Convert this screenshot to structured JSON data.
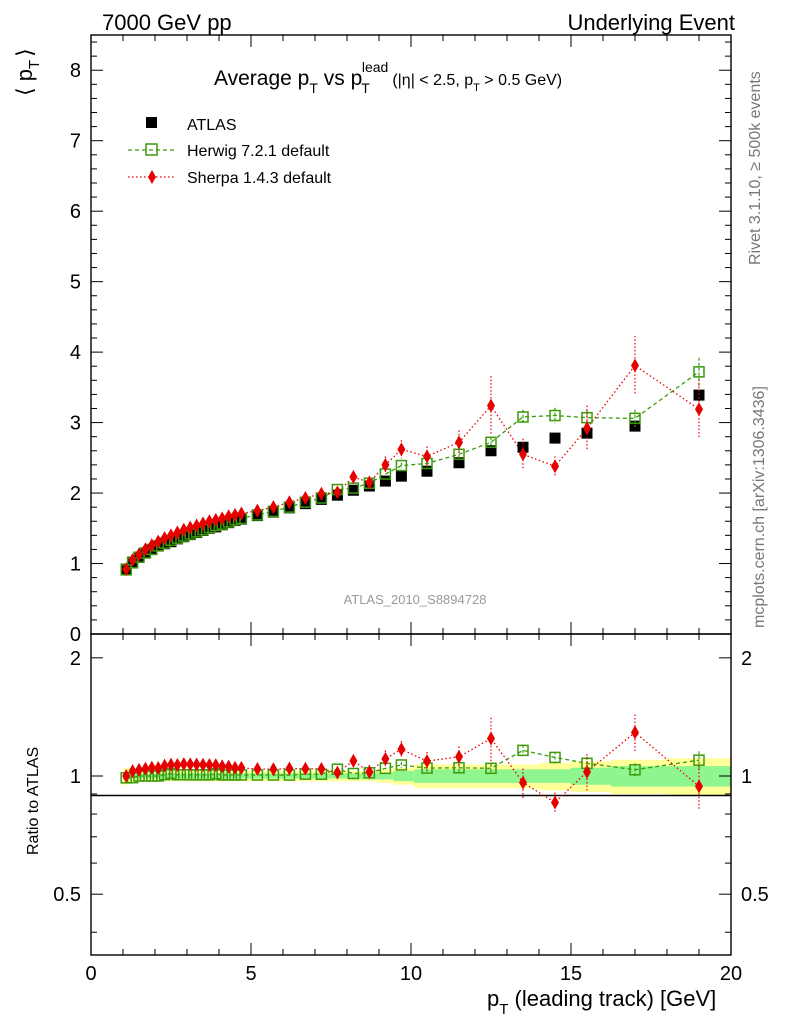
{
  "header": {
    "left": "7000 GeV pp",
    "right": "Underlying Event",
    "side_top": "Rivet 3.1.10, ≥ 500k events",
    "side_bottom": "mcplots.cern.ch [arXiv:1306.3436]",
    "watermark": "ATLAS_2010_S8894728"
  },
  "title": {
    "main": "Average p",
    "sub_T": "T",
    "vs": " vs p",
    "sup_lead": "lead",
    "cut": "(|η| < 2.5, p",
    "cut_end": " > 0.5 GeV)"
  },
  "axes": {
    "ylabel_main": "⟨ p",
    "ylabel_main_sub": "T",
    "ylabel_main_end": "⟩",
    "ylabel_ratio": "Ratio to ATLAS",
    "xlabel": "p",
    "xlabel_sub": "T",
    "xlabel_end": " (leading track) [GeV]"
  },
  "colors": {
    "atlas": "#000000",
    "herwig": "#3a9a0a",
    "sherpa": "#e60000",
    "band_yellow": "#ffff99",
    "band_green": "#8ff58f"
  },
  "chart_data": {
    "type": "scatter",
    "x": [
      1.1,
      1.3,
      1.5,
      1.7,
      1.9,
      2.1,
      2.3,
      2.5,
      2.7,
      2.9,
      3.1,
      3.3,
      3.5,
      3.7,
      3.9,
      4.1,
      4.3,
      4.5,
      4.7,
      5.2,
      5.7,
      6.2,
      6.7,
      7.2,
      7.7,
      8.2,
      8.7,
      9.2,
      9.7,
      10.5,
      11.5,
      12.5,
      13.5,
      14.5,
      15.5,
      17.0,
      19.0
    ],
    "main_ylim": [
      0,
      8.5
    ],
    "ratio_ylim": [
      0.35,
      2.3
    ],
    "xlim": [
      0,
      20
    ],
    "xticks": [
      "0",
      "5",
      "10",
      "15",
      "20"
    ],
    "main_yticks": [
      "0",
      "1",
      "2",
      "3",
      "4",
      "5",
      "6",
      "7",
      "8"
    ],
    "ratio_yticks": [
      "0.5",
      "1",
      "2"
    ],
    "series": [
      {
        "name": "ATLAS",
        "marker": "filled-square",
        "values": [
          0.92,
          1.02,
          1.09,
          1.15,
          1.2,
          1.25,
          1.28,
          1.31,
          1.35,
          1.38,
          1.41,
          1.44,
          1.47,
          1.5,
          1.52,
          1.55,
          1.58,
          1.61,
          1.63,
          1.68,
          1.73,
          1.79,
          1.85,
          1.91,
          1.97,
          2.04,
          2.1,
          2.17,
          2.24,
          2.31,
          2.43,
          2.6,
          2.65,
          2.78,
          2.85,
          2.95,
          3.39
        ],
        "band_halfwidth_yellow": [
          0.05,
          0.04,
          0.03,
          0.03,
          0.03,
          0.03,
          0.03,
          0.03,
          0.03,
          0.03,
          0.03,
          0.03,
          0.03,
          0.03,
          0.03,
          0.03,
          0.03,
          0.03,
          0.03,
          0.03,
          0.03,
          0.03,
          0.03,
          0.03,
          0.03,
          0.03,
          0.03,
          0.04,
          0.05,
          0.07,
          0.07,
          0.07,
          0.07,
          0.08,
          0.09,
          0.1,
          0.11
        ],
        "band_halfwidth_green": [
          0.02,
          0.015,
          0.015,
          0.015,
          0.015,
          0.015,
          0.015,
          0.015,
          0.015,
          0.015,
          0.015,
          0.015,
          0.015,
          0.015,
          0.015,
          0.015,
          0.015,
          0.015,
          0.015,
          0.015,
          0.015,
          0.015,
          0.015,
          0.015,
          0.015,
          0.015,
          0.02,
          0.02,
          0.03,
          0.04,
          0.04,
          0.04,
          0.04,
          0.04,
          0.05,
          0.06,
          0.06
        ]
      },
      {
        "name": "Herwig 7.2.1 default",
        "marker": "open-square",
        "line": "dashed",
        "values": [
          0.91,
          1.01,
          1.09,
          1.15,
          1.2,
          1.25,
          1.29,
          1.33,
          1.36,
          1.39,
          1.42,
          1.45,
          1.48,
          1.51,
          1.54,
          1.56,
          1.59,
          1.62,
          1.64,
          1.69,
          1.74,
          1.8,
          1.87,
          1.93,
          2.05,
          2.07,
          2.14,
          2.27,
          2.39,
          2.42,
          2.55,
          2.72,
          3.08,
          3.1,
          3.07,
          3.06,
          3.72
        ],
        "errors": [
          0.01,
          0.01,
          0.01,
          0.01,
          0.01,
          0.01,
          0.01,
          0.01,
          0.01,
          0.01,
          0.01,
          0.01,
          0.01,
          0.01,
          0.01,
          0.01,
          0.01,
          0.01,
          0.01,
          0.01,
          0.01,
          0.01,
          0.01,
          0.02,
          0.02,
          0.02,
          0.03,
          0.03,
          0.04,
          0.05,
          0.06,
          0.07,
          0.1,
          0.11,
          0.12,
          0.12,
          0.2
        ]
      },
      {
        "name": "Sherpa 1.4.3 default",
        "marker": "filled-diamond",
        "line": "dotted",
        "values": [
          0.92,
          1.05,
          1.13,
          1.2,
          1.26,
          1.31,
          1.36,
          1.4,
          1.44,
          1.48,
          1.51,
          1.54,
          1.57,
          1.6,
          1.62,
          1.64,
          1.67,
          1.69,
          1.71,
          1.75,
          1.8,
          1.87,
          1.93,
          1.99,
          2.01,
          2.23,
          2.15,
          2.4,
          2.62,
          2.52,
          2.72,
          3.24,
          2.55,
          2.38,
          2.92,
          3.81,
          3.19
        ],
        "errors": [
          0.01,
          0.01,
          0.01,
          0.01,
          0.01,
          0.01,
          0.01,
          0.01,
          0.01,
          0.01,
          0.01,
          0.01,
          0.01,
          0.01,
          0.01,
          0.01,
          0.01,
          0.01,
          0.01,
          0.02,
          0.02,
          0.03,
          0.03,
          0.04,
          0.04,
          0.08,
          0.09,
          0.12,
          0.13,
          0.14,
          0.17,
          0.42,
          0.22,
          0.14,
          0.32,
          0.42,
          0.42
        ]
      }
    ]
  }
}
